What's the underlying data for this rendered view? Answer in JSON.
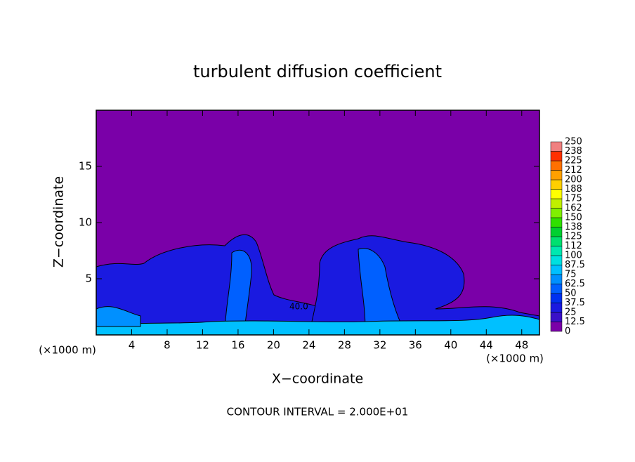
{
  "chart_data": {
    "type": "contour",
    "title": "turbulent diffusion coefficient",
    "x_label": "X−coordinate",
    "y_label": "Z−coordinate",
    "x_unit": "(×1000 m)",
    "y_unit": "(×1000 m)",
    "footer": "CONTOUR INTERVAL = 2.000E+01",
    "annotation": "40.0",
    "xlim": [
      0,
      50
    ],
    "ylim": [
      0,
      20
    ],
    "xticks": [
      4,
      8,
      12,
      16,
      20,
      24,
      28,
      32,
      36,
      40,
      44,
      48
    ],
    "yticks": [
      5,
      10,
      15
    ],
    "levels": [
      0,
      12.5,
      25,
      37.5,
      50,
      62.5,
      75,
      87.5,
      100,
      112,
      125,
      138,
      150,
      162,
      175,
      188,
      200,
      212,
      225,
      238,
      250
    ],
    "colors": [
      "#7a00a8",
      "#3a10c8",
      "#1a1ae0",
      "#0030f0",
      "#0060ff",
      "#0090ff",
      "#00c0ff",
      "#00e0e0",
      "#00e8b0",
      "#00e070",
      "#00d030",
      "#30e000",
      "#80f000",
      "#c0f000",
      "#ffff00",
      "#ffd000",
      "#ffa000",
      "#ff7000",
      "#ff3000",
      "#f08080"
    ]
  }
}
